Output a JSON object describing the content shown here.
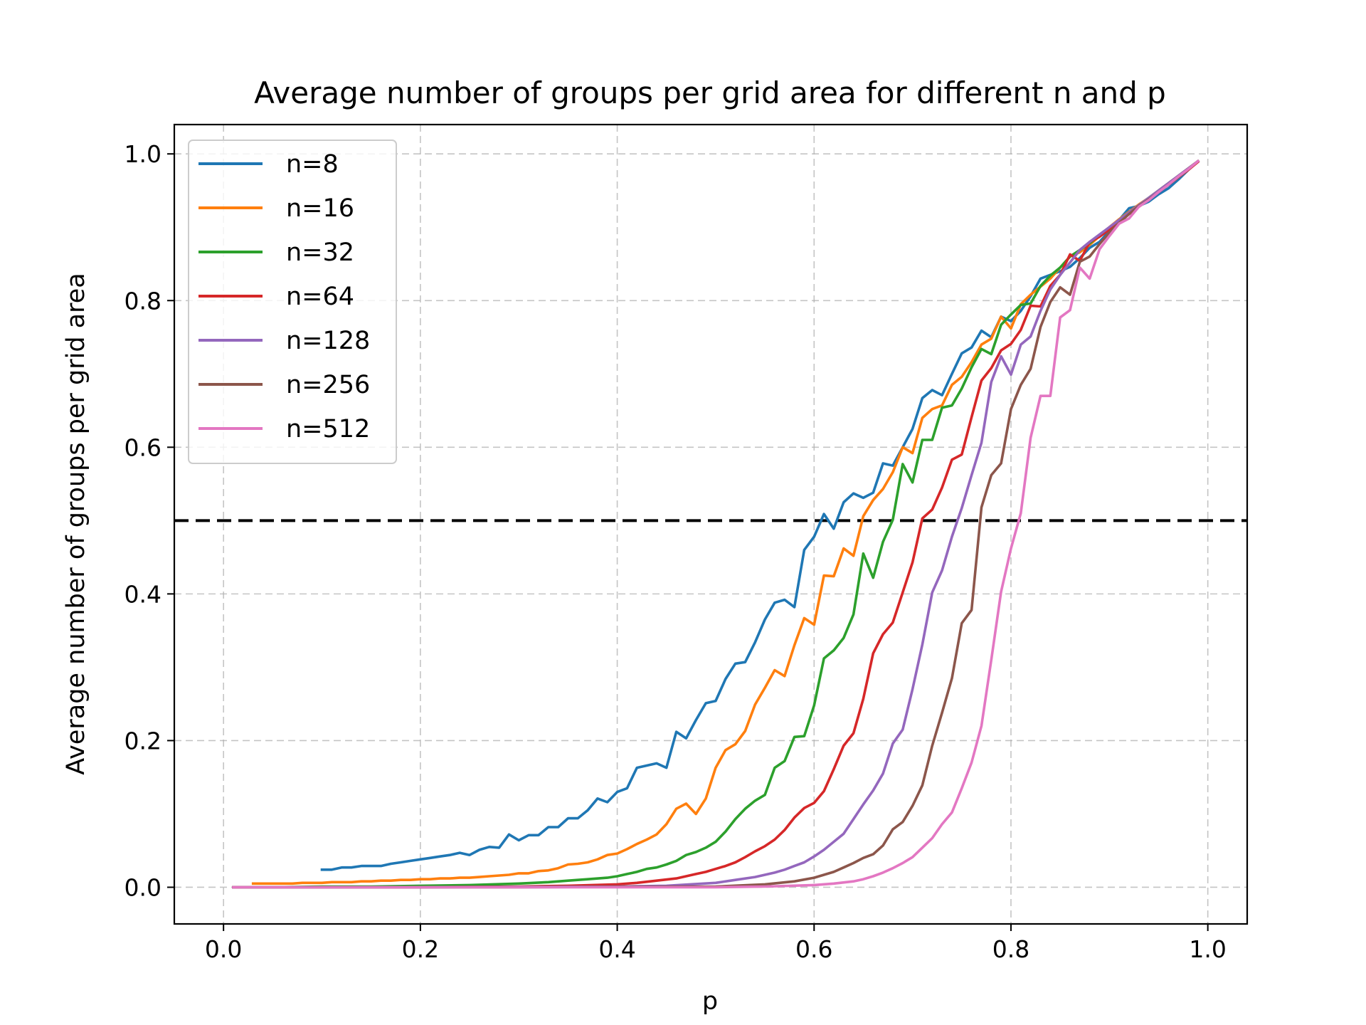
{
  "chart_data": {
    "type": "line",
    "title": "Average number of groups per grid area for different n and p",
    "xlabel": "p",
    "ylabel": "Average number of groups per grid area",
    "xlim": [
      -0.05,
      1.04
    ],
    "ylim": [
      -0.05,
      1.04
    ],
    "xticks": [
      0.0,
      0.2,
      0.4,
      0.6,
      0.8,
      1.0
    ],
    "xtick_labels": [
      "0.0",
      "0.2",
      "0.4",
      "0.6",
      "0.8",
      "1.0"
    ],
    "yticks": [
      0.0,
      0.2,
      0.4,
      0.6,
      0.8,
      1.0
    ],
    "ytick_labels": [
      "0.0",
      "0.2",
      "0.4",
      "0.6",
      "0.8",
      "1.0"
    ],
    "grid": true,
    "legend_position": "upper-left",
    "reference_line": {
      "y": 0.5,
      "style": "dashed",
      "color": "#000000"
    },
    "series": [
      {
        "name": "n=8",
        "color": "#1f77b4",
        "x": [
          0.1,
          0.11,
          0.12,
          0.13,
          0.14,
          0.15,
          0.16,
          0.17,
          0.18,
          0.19,
          0.2,
          0.21,
          0.22,
          0.23,
          0.24,
          0.25,
          0.26,
          0.27,
          0.28,
          0.29,
          0.3,
          0.31,
          0.32,
          0.33,
          0.34,
          0.35,
          0.36,
          0.37,
          0.38,
          0.39,
          0.4,
          0.41,
          0.42,
          0.43,
          0.44,
          0.45,
          0.46,
          0.47,
          0.48,
          0.49,
          0.5,
          0.51,
          0.52,
          0.53,
          0.54,
          0.55,
          0.56,
          0.57,
          0.58,
          0.59,
          0.6,
          0.61,
          0.62,
          0.63,
          0.64,
          0.65,
          0.66,
          0.67,
          0.68,
          0.69,
          0.7,
          0.71,
          0.72,
          0.73,
          0.74,
          0.75,
          0.76,
          0.77,
          0.78,
          0.79,
          0.8,
          0.81,
          0.82,
          0.83,
          0.84,
          0.85,
          0.86,
          0.87,
          0.88,
          0.89,
          0.9,
          0.91,
          0.92,
          0.93,
          0.94,
          0.95,
          0.96,
          0.97,
          0.98,
          0.99
        ],
        "y": [
          0.024,
          0.024,
          0.027,
          0.027,
          0.029,
          0.029,
          0.029,
          0.032,
          0.034,
          0.036,
          0.038,
          0.04,
          0.042,
          0.044,
          0.047,
          0.044,
          0.051,
          0.055,
          0.054,
          0.072,
          0.064,
          0.071,
          0.071,
          0.082,
          0.082,
          0.094,
          0.094,
          0.105,
          0.121,
          0.116,
          0.13,
          0.135,
          0.163,
          0.166,
          0.169,
          0.163,
          0.212,
          0.203,
          0.228,
          0.251,
          0.254,
          0.284,
          0.305,
          0.307,
          0.334,
          0.365,
          0.388,
          0.392,
          0.382,
          0.46,
          0.478,
          0.509,
          0.489,
          0.525,
          0.537,
          0.531,
          0.538,
          0.578,
          0.575,
          0.6,
          0.625,
          0.667,
          0.678,
          0.671,
          0.7,
          0.728,
          0.736,
          0.759,
          0.75,
          0.778,
          0.772,
          0.786,
          0.806,
          0.83,
          0.835,
          0.84,
          0.846,
          0.858,
          0.872,
          0.88,
          0.895,
          0.91,
          0.926,
          0.929,
          0.935,
          0.945,
          0.953,
          0.965,
          0.978,
          0.99
        ]
      },
      {
        "name": "n=16",
        "color": "#ff7f0e",
        "x": [
          0.03,
          0.04,
          0.05,
          0.06,
          0.07,
          0.08,
          0.09,
          0.1,
          0.11,
          0.12,
          0.13,
          0.14,
          0.15,
          0.16,
          0.17,
          0.18,
          0.19,
          0.2,
          0.21,
          0.22,
          0.23,
          0.24,
          0.25,
          0.26,
          0.27,
          0.28,
          0.29,
          0.3,
          0.31,
          0.32,
          0.33,
          0.34,
          0.35,
          0.36,
          0.37,
          0.38,
          0.39,
          0.4,
          0.41,
          0.42,
          0.43,
          0.44,
          0.45,
          0.46,
          0.47,
          0.48,
          0.49,
          0.5,
          0.51,
          0.52,
          0.53,
          0.54,
          0.55,
          0.56,
          0.57,
          0.58,
          0.59,
          0.6,
          0.61,
          0.62,
          0.63,
          0.64,
          0.65,
          0.66,
          0.67,
          0.68,
          0.69,
          0.7,
          0.71,
          0.72,
          0.73,
          0.74,
          0.75,
          0.76,
          0.77,
          0.78,
          0.79,
          0.8,
          0.81,
          0.82,
          0.83,
          0.84,
          0.85,
          0.86,
          0.87,
          0.88,
          0.89,
          0.9,
          0.91,
          0.92,
          0.93,
          0.94,
          0.95,
          0.96,
          0.97,
          0.98,
          0.99
        ],
        "y": [
          0.005,
          0.005,
          0.005,
          0.005,
          0.005,
          0.006,
          0.006,
          0.006,
          0.007,
          0.007,
          0.007,
          0.008,
          0.008,
          0.009,
          0.009,
          0.01,
          0.01,
          0.011,
          0.011,
          0.012,
          0.012,
          0.013,
          0.013,
          0.014,
          0.015,
          0.016,
          0.017,
          0.019,
          0.019,
          0.022,
          0.023,
          0.026,
          0.031,
          0.032,
          0.034,
          0.038,
          0.044,
          0.046,
          0.052,
          0.059,
          0.065,
          0.072,
          0.086,
          0.107,
          0.114,
          0.1,
          0.121,
          0.163,
          0.187,
          0.195,
          0.213,
          0.249,
          0.272,
          0.296,
          0.288,
          0.33,
          0.367,
          0.358,
          0.425,
          0.424,
          0.462,
          0.452,
          0.506,
          0.528,
          0.543,
          0.566,
          0.6,
          0.592,
          0.64,
          0.652,
          0.657,
          0.685,
          0.696,
          0.716,
          0.74,
          0.748,
          0.778,
          0.762,
          0.795,
          0.808,
          0.819,
          0.83,
          0.845,
          0.86,
          0.866,
          0.876,
          0.888,
          0.9,
          0.911,
          0.921,
          0.931,
          0.94,
          0.95,
          0.96,
          0.97,
          0.98,
          0.99
        ]
      },
      {
        "name": "n=32",
        "color": "#2ca02c",
        "x": [
          0.01,
          0.05,
          0.1,
          0.15,
          0.2,
          0.25,
          0.3,
          0.33,
          0.35,
          0.37,
          0.39,
          0.4,
          0.41,
          0.42,
          0.43,
          0.44,
          0.45,
          0.46,
          0.47,
          0.48,
          0.49,
          0.5,
          0.51,
          0.52,
          0.53,
          0.54,
          0.55,
          0.56,
          0.57,
          0.58,
          0.59,
          0.6,
          0.61,
          0.62,
          0.63,
          0.64,
          0.65,
          0.66,
          0.67,
          0.68,
          0.69,
          0.7,
          0.71,
          0.72,
          0.73,
          0.74,
          0.75,
          0.76,
          0.77,
          0.78,
          0.79,
          0.8,
          0.81,
          0.82,
          0.83,
          0.84,
          0.85,
          0.86,
          0.87,
          0.88,
          0.89,
          0.9,
          0.91,
          0.92,
          0.93,
          0.94,
          0.95,
          0.96,
          0.97,
          0.98,
          0.99
        ],
        "y": [
          0.0,
          0.0,
          0.001,
          0.001,
          0.002,
          0.003,
          0.005,
          0.007,
          0.009,
          0.011,
          0.013,
          0.015,
          0.018,
          0.021,
          0.025,
          0.027,
          0.031,
          0.036,
          0.044,
          0.048,
          0.054,
          0.062,
          0.076,
          0.093,
          0.107,
          0.118,
          0.126,
          0.163,
          0.172,
          0.205,
          0.206,
          0.248,
          0.312,
          0.323,
          0.34,
          0.372,
          0.455,
          0.422,
          0.471,
          0.501,
          0.577,
          0.552,
          0.61,
          0.61,
          0.654,
          0.657,
          0.68,
          0.709,
          0.734,
          0.727,
          0.767,
          0.781,
          0.794,
          0.796,
          0.82,
          0.834,
          0.845,
          0.86,
          0.869,
          0.878,
          0.889,
          0.899,
          0.91,
          0.92,
          0.93,
          0.94,
          0.95,
          0.96,
          0.97,
          0.98,
          0.99
        ]
      },
      {
        "name": "n=64",
        "color": "#d62728",
        "x": [
          0.01,
          0.1,
          0.2,
          0.3,
          0.35,
          0.4,
          0.42,
          0.44,
          0.46,
          0.47,
          0.48,
          0.49,
          0.5,
          0.51,
          0.52,
          0.53,
          0.54,
          0.55,
          0.56,
          0.57,
          0.58,
          0.59,
          0.6,
          0.61,
          0.62,
          0.63,
          0.64,
          0.65,
          0.66,
          0.67,
          0.68,
          0.69,
          0.7,
          0.71,
          0.72,
          0.73,
          0.74,
          0.75,
          0.76,
          0.77,
          0.78,
          0.79,
          0.8,
          0.81,
          0.82,
          0.83,
          0.84,
          0.85,
          0.86,
          0.87,
          0.88,
          0.89,
          0.9,
          0.91,
          0.92,
          0.93,
          0.94,
          0.95,
          0.96,
          0.97,
          0.98,
          0.99
        ],
        "y": [
          0.0,
          0.0,
          0.0,
          0.001,
          0.002,
          0.004,
          0.006,
          0.009,
          0.012,
          0.015,
          0.018,
          0.021,
          0.025,
          0.029,
          0.034,
          0.041,
          0.049,
          0.056,
          0.065,
          0.078,
          0.095,
          0.108,
          0.115,
          0.131,
          0.161,
          0.193,
          0.21,
          0.257,
          0.319,
          0.345,
          0.361,
          0.402,
          0.443,
          0.503,
          0.515,
          0.545,
          0.583,
          0.59,
          0.641,
          0.691,
          0.708,
          0.732,
          0.741,
          0.76,
          0.793,
          0.792,
          0.82,
          0.835,
          0.863,
          0.854,
          0.88,
          0.887,
          0.897,
          0.908,
          0.918,
          0.928,
          0.938,
          0.948,
          0.958,
          0.968,
          0.978,
          0.989
        ]
      },
      {
        "name": "n=128",
        "color": "#9467bd",
        "x": [
          0.01,
          0.2,
          0.4,
          0.45,
          0.5,
          0.52,
          0.54,
          0.56,
          0.57,
          0.58,
          0.59,
          0.6,
          0.61,
          0.62,
          0.63,
          0.64,
          0.65,
          0.66,
          0.67,
          0.68,
          0.69,
          0.7,
          0.71,
          0.72,
          0.73,
          0.74,
          0.75,
          0.76,
          0.77,
          0.78,
          0.79,
          0.8,
          0.81,
          0.82,
          0.83,
          0.84,
          0.85,
          0.86,
          0.87,
          0.88,
          0.89,
          0.9,
          0.91,
          0.92,
          0.93,
          0.94,
          0.95,
          0.96,
          0.97,
          0.98,
          0.99
        ],
        "y": [
          0.0,
          0.0,
          0.001,
          0.002,
          0.006,
          0.01,
          0.014,
          0.02,
          0.024,
          0.029,
          0.034,
          0.042,
          0.051,
          0.062,
          0.073,
          0.093,
          0.113,
          0.132,
          0.155,
          0.196,
          0.215,
          0.27,
          0.331,
          0.402,
          0.432,
          0.478,
          0.517,
          0.562,
          0.606,
          0.689,
          0.724,
          0.699,
          0.74,
          0.751,
          0.786,
          0.815,
          0.835,
          0.852,
          0.869,
          0.88,
          0.89,
          0.9,
          0.91,
          0.92,
          0.93,
          0.94,
          0.95,
          0.96,
          0.97,
          0.98,
          0.99
        ]
      },
      {
        "name": "n=256",
        "color": "#8c564b",
        "x": [
          0.01,
          0.3,
          0.5,
          0.55,
          0.58,
          0.6,
          0.61,
          0.62,
          0.63,
          0.64,
          0.65,
          0.66,
          0.67,
          0.68,
          0.69,
          0.7,
          0.71,
          0.72,
          0.73,
          0.74,
          0.75,
          0.76,
          0.77,
          0.78,
          0.79,
          0.8,
          0.81,
          0.82,
          0.83,
          0.84,
          0.85,
          0.86,
          0.87,
          0.88,
          0.89,
          0.9,
          0.91,
          0.92,
          0.93,
          0.94,
          0.95,
          0.96,
          0.97,
          0.98,
          0.99
        ],
        "y": [
          0.0,
          0.0,
          0.001,
          0.004,
          0.008,
          0.013,
          0.017,
          0.021,
          0.027,
          0.033,
          0.04,
          0.045,
          0.057,
          0.079,
          0.089,
          0.111,
          0.139,
          0.193,
          0.238,
          0.285,
          0.36,
          0.378,
          0.518,
          0.562,
          0.578,
          0.652,
          0.685,
          0.707,
          0.764,
          0.798,
          0.818,
          0.808,
          0.853,
          0.86,
          0.877,
          0.893,
          0.906,
          0.918,
          0.929,
          0.938,
          0.948,
          0.958,
          0.968,
          0.979,
          0.99
        ]
      },
      {
        "name": "n=512",
        "color": "#e377c2",
        "x": [
          0.01,
          0.3,
          0.5,
          0.55,
          0.6,
          0.62,
          0.64,
          0.65,
          0.66,
          0.67,
          0.68,
          0.69,
          0.7,
          0.71,
          0.72,
          0.73,
          0.74,
          0.75,
          0.76,
          0.77,
          0.78,
          0.79,
          0.8,
          0.81,
          0.82,
          0.83,
          0.84,
          0.85,
          0.86,
          0.87,
          0.88,
          0.89,
          0.9,
          0.91,
          0.92,
          0.93,
          0.94,
          0.95,
          0.96,
          0.97,
          0.98,
          0.99
        ],
        "y": [
          0.0,
          0.0,
          0.0,
          0.001,
          0.003,
          0.005,
          0.008,
          0.011,
          0.015,
          0.02,
          0.026,
          0.033,
          0.041,
          0.054,
          0.067,
          0.086,
          0.102,
          0.135,
          0.17,
          0.22,
          0.31,
          0.403,
          0.462,
          0.51,
          0.613,
          0.67,
          0.67,
          0.777,
          0.787,
          0.845,
          0.83,
          0.87,
          0.888,
          0.905,
          0.912,
          0.928,
          0.937,
          0.948,
          0.958,
          0.969,
          0.979,
          0.99
        ]
      }
    ]
  }
}
